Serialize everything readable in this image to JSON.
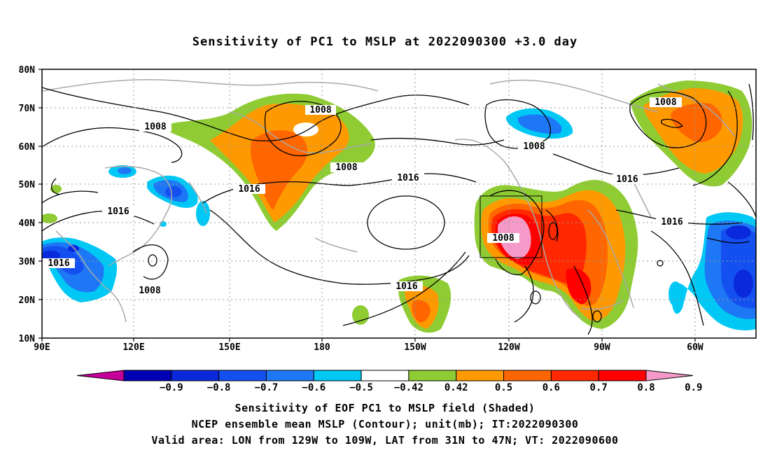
{
  "title": "Sensitivity of PC1 to MSLP at 2022090300 +3.0 day",
  "lat_labels": [
    "80N",
    "70N",
    "60N",
    "50N",
    "40N",
    "30N",
    "20N",
    "10N"
  ],
  "lon_labels": [
    "90E",
    "120E",
    "150E",
    "180",
    "150W",
    "120W",
    "90W",
    "60W"
  ],
  "contour_labels": [
    "1008",
    "1008",
    "1008",
    "1008",
    "1008",
    "1008",
    "1008",
    "1016",
    "1016",
    "1016",
    "1016",
    "1016",
    "1016",
    "1016"
  ],
  "colorbar": {
    "tick_labels": [
      "-0.9",
      "-0.8",
      "-0.7",
      "-0.6",
      "-0.5",
      "-0.42",
      "0.42",
      "0.5",
      "0.6",
      "0.7",
      "0.8",
      "0.9"
    ],
    "colors": [
      "#c8009b",
      "#0000b4",
      "#0a28dc",
      "#1450f0",
      "#1e78f5",
      "#00c8f5",
      "#ffffff",
      "#8fcc33",
      "#ff9900",
      "#ff6600",
      "#ff2800",
      "#ff0000",
      "#f59ac8"
    ]
  },
  "footer": {
    "line1": "Sensitivity of EOF PC1 to MSLP field (Shaded)",
    "line2": "NCEP ensemble mean MSLP (Contour); unit(mb); IT:2022090300",
    "line3": "Valid area: LON from 129W to 109W, LAT from 31N to 47N; VT: 2022090600"
  }
}
